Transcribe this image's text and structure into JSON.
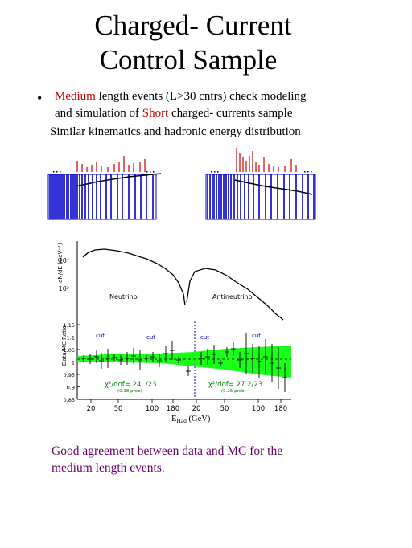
{
  "title": {
    "line1": "Charged- Current",
    "line2": "Control Sample"
  },
  "bullet": {
    "symbol": "•",
    "medium_word": "Medium",
    "line1_rest": " length events (L>30 cntrs) check modeling",
    "line2_prefix": "and simulation of ",
    "short_word": "Short",
    "line2_rest": " charged- currents sample"
  },
  "subline": "Similar kinematics and hadronic energy distribution",
  "plot": {
    "top_ylabel": "dN/dE (GeV⁻¹)",
    "top_ticks": [
      "10⁴",
      "10³"
    ],
    "neutrino_label": "Neutrino",
    "antineutrino_label": "Antineutrino",
    "ratio_ylabel": "Data/MC Ratio",
    "ratio_ticks": [
      "1.15",
      "1.1",
      "1.05",
      "1",
      "0.95",
      "0.9",
      "0.85"
    ],
    "cut_label": "cut",
    "chi2_left": "χ²/dof= 24. /23",
    "chi2_left_sub": "(0.38 prob)",
    "chi2_right": "χ²/dof= 27.2/23",
    "chi2_right_sub": "(0.25 prob)",
    "x_ticks": [
      "20",
      "50",
      "100",
      "180",
      "20",
      "50",
      "100",
      "180"
    ],
    "xlabel_main": "E",
    "xlabel_sub": "Had",
    "xlabel_unit": " (GeV)"
  },
  "footer": {
    "line1": "Good agreement between data and MC for the",
    "line2": "medium length events."
  },
  "colors": {
    "accent_red": "#cc0000",
    "footer_purple": "#660066",
    "detector_blue": "#0000cc",
    "band_green": "#00ff00"
  }
}
